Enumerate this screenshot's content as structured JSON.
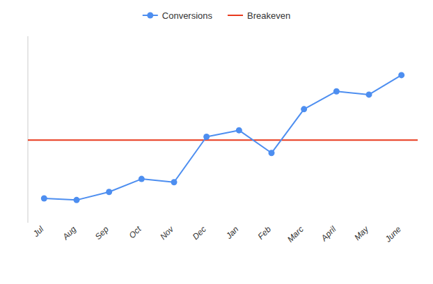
{
  "chart_data": {
    "type": "line",
    "categories": [
      "Jul",
      "Aug",
      "Sep",
      "Oct",
      "Nov",
      "Dec",
      "Jan",
      "Feb",
      "Marc",
      "April",
      "May",
      "June"
    ],
    "series": [
      {
        "name": "Conversions",
        "color": "#4d8ef0",
        "marker": "circle",
        "line_style": "solid",
        "values": [
          10,
          9,
          14,
          22,
          20,
          48,
          52,
          38,
          65,
          76,
          74,
          86
        ]
      },
      {
        "name": "Breakeven",
        "type": "hline",
        "color": "#e8391d",
        "line_style": "solid",
        "value": 46
      }
    ],
    "ylim": [
      -5,
      110
    ],
    "grid": false,
    "legend": "top",
    "tick_labels": "x"
  }
}
